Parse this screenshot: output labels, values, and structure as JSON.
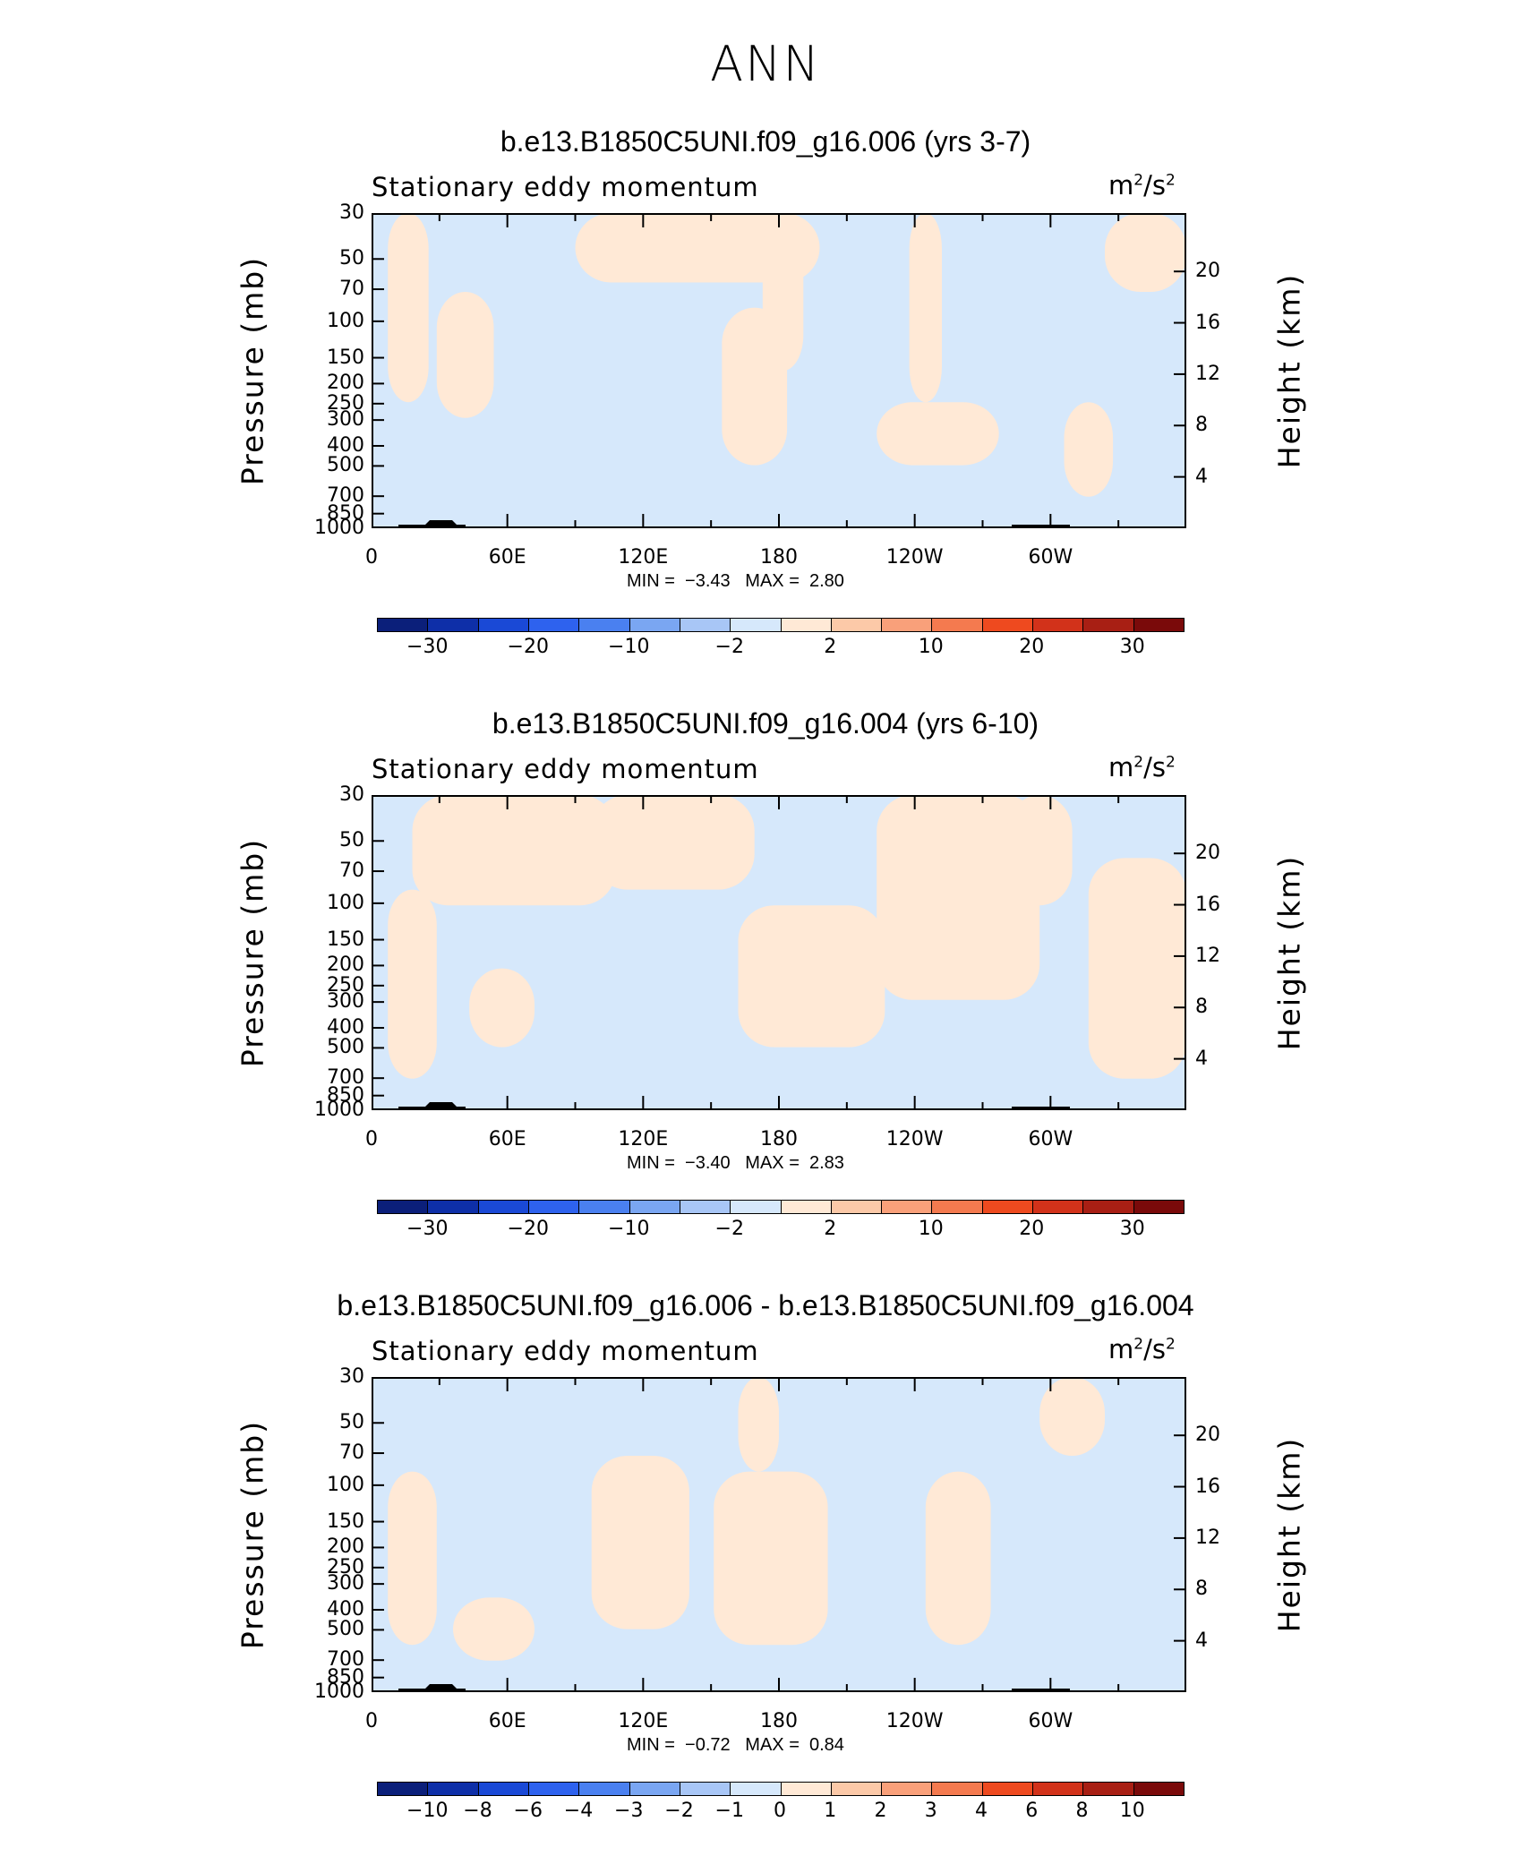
{
  "title": "ANN",
  "colors": {
    "neg_fill": "#d6e8fb",
    "pos_fill": "#ffe9d6",
    "colorbar": [
      "#0b1f7a",
      "#0e2fa8",
      "#1a49d6",
      "#2e62ee",
      "#4a80f0",
      "#7aa6f2",
      "#a8c6f6",
      "#d6e8fb",
      "#ffe9d6",
      "#fcc9a8",
      "#f9a07a",
      "#f47a4f",
      "#ee4a1f",
      "#d2321a",
      "#a81f14",
      "#7a0a0a"
    ]
  },
  "chart_data": [
    {
      "type": "heatmap",
      "title": "b.e13.B1850C5UNI.f09_g16.006 (yrs 3-7)",
      "field": "Stationary eddy momentum",
      "units_base": "m",
      "units_exp1": "2",
      "units_sep": "/s",
      "units_exp2": "2",
      "ylabel": "Pressure (mb)",
      "ylabel_right": "Height (km)",
      "yticks": [
        "30",
        "50",
        "70",
        "100",
        "150",
        "200",
        "250",
        "300",
        "400",
        "500",
        "700",
        "850",
        "1000"
      ],
      "yticks_right": [
        "20",
        "16",
        "12",
        "8",
        "4"
      ],
      "xticks": [
        "0",
        "60E",
        "120E",
        "180",
        "120W",
        "60W"
      ],
      "min_label": "MIN =",
      "min_value": "−3.43",
      "max_label": "MAX =",
      "max_value": "2.80",
      "colorbar_labels": [
        "−30",
        "−20",
        "−10",
        "−2",
        "2",
        "10",
        "20",
        "30"
      ]
    },
    {
      "type": "heatmap",
      "title": "b.e13.B1850C5UNI.f09_g16.004 (yrs 6-10)",
      "field": "Stationary eddy momentum",
      "units_base": "m",
      "units_exp1": "2",
      "units_sep": "/s",
      "units_exp2": "2",
      "ylabel": "Pressure (mb)",
      "ylabel_right": "Height (km)",
      "yticks": [
        "30",
        "50",
        "70",
        "100",
        "150",
        "200",
        "250",
        "300",
        "400",
        "500",
        "700",
        "850",
        "1000"
      ],
      "yticks_right": [
        "20",
        "16",
        "12",
        "8",
        "4"
      ],
      "xticks": [
        "0",
        "60E",
        "120E",
        "180",
        "120W",
        "60W"
      ],
      "min_label": "MIN =",
      "min_value": "−3.40",
      "max_label": "MAX =",
      "max_value": "2.83",
      "colorbar_labels": [
        "−30",
        "−20",
        "−10",
        "−2",
        "2",
        "10",
        "20",
        "30"
      ]
    },
    {
      "type": "heatmap",
      "title": "b.e13.B1850C5UNI.f09_g16.006 - b.e13.B1850C5UNI.f09_g16.004",
      "field": "Stationary eddy momentum",
      "units_base": "m",
      "units_exp1": "2",
      "units_sep": "/s",
      "units_exp2": "2",
      "ylabel": "Pressure (mb)",
      "ylabel_right": "Height (km)",
      "yticks": [
        "30",
        "50",
        "70",
        "100",
        "150",
        "200",
        "250",
        "300",
        "400",
        "500",
        "700",
        "850",
        "1000"
      ],
      "yticks_right": [
        "20",
        "16",
        "12",
        "8",
        "4"
      ],
      "xticks": [
        "0",
        "60E",
        "120E",
        "180",
        "120W",
        "60W"
      ],
      "min_label": "MIN =",
      "min_value": "−0.72",
      "max_label": "MAX =",
      "max_value": "0.84",
      "colorbar_labels": [
        "−10",
        "−8",
        "−6",
        "−4",
        "−3",
        "−2",
        "−1",
        "0",
        "1",
        "2",
        "3",
        "4",
        "6",
        "8",
        "10"
      ]
    }
  ]
}
